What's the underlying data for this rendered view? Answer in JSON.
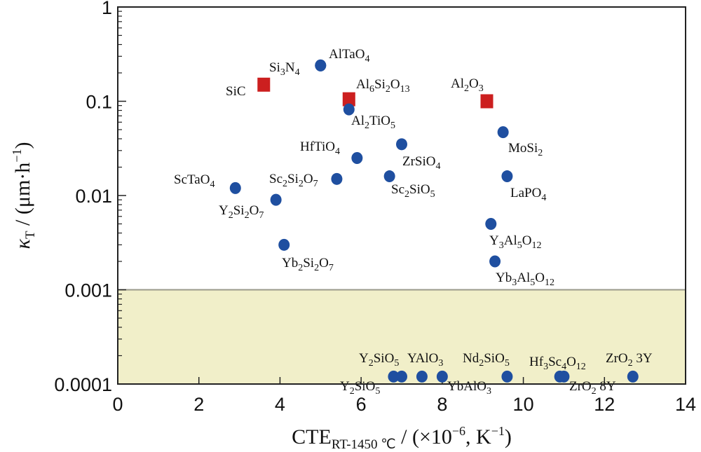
{
  "chart_data": {
    "type": "scatter",
    "xlabel": {
      "main": "CTE",
      "sub": "RT-1450 ℃",
      "rest": " / (×10",
      "exp": "−6",
      "rest2": ", K",
      "exp2": "−1",
      "close": ")"
    },
    "ylabel": {
      "kappa": "κ",
      "sub": "T",
      "rest": " / (μm·h",
      "exp": "−1",
      "close": ")"
    },
    "xlim": [
      0,
      14
    ],
    "ylim": [
      0.0001,
      1
    ],
    "yscale": "log",
    "x_ticks": [
      0,
      2,
      4,
      6,
      8,
      10,
      12,
      14
    ],
    "x_tick_labels": [
      "0",
      "2",
      "4",
      "6",
      "8",
      "10",
      "12",
      "14"
    ],
    "y_ticks": [
      0.0001,
      0.001,
      0.01,
      0.1,
      1
    ],
    "y_tick_labels": [
      "0.0001",
      "0.001",
      "0.01",
      "0.1",
      "1"
    ],
    "shaded_region": {
      "y_from": 0.0001,
      "y_to": 0.001,
      "color": "#f1efc9"
    },
    "colors": {
      "circle": "#1f4fa0",
      "square": "#cc1f1f",
      "frame": "#222222",
      "shade_line": "#9a9a8a"
    },
    "series": [
      {
        "marker": "square",
        "points": [
          {
            "label": "SiC",
            "x": 3.6,
            "y": 0.15
          },
          {
            "label": "Al6Si2O13",
            "x": 5.7,
            "y": 0.105
          },
          {
            "label": "Al2O3",
            "x": 9.1,
            "y": 0.1
          }
        ]
      },
      {
        "marker": "circle",
        "points": [
          {
            "label": "Si3N4",
            "x": 5.0,
            "y": 0.24
          },
          {
            "label": "AlTaO4",
            "x": 5.0,
            "y": 0.24
          },
          {
            "label": "Al2TiO5",
            "x": 5.7,
            "y": 0.082
          },
          {
            "label": "HfTiO4",
            "x": 5.9,
            "y": 0.025
          },
          {
            "label": "ZrSiO4",
            "x": 7.0,
            "y": 0.035
          },
          {
            "label": "Sc2SiO5",
            "x": 6.7,
            "y": 0.016
          },
          {
            "label": "Sc2Si2O7",
            "x": 5.4,
            "y": 0.015
          },
          {
            "label": "ScTaO4",
            "x": 2.9,
            "y": 0.012
          },
          {
            "label": "Y2Si2O7",
            "x": 3.9,
            "y": 0.009
          },
          {
            "label": "Yb2Si2O7",
            "x": 4.1,
            "y": 0.003
          },
          {
            "label": "MoSi2",
            "x": 9.5,
            "y": 0.047
          },
          {
            "label": "LaPO4",
            "x": 9.6,
            "y": 0.016
          },
          {
            "label": "Y3Al5O12",
            "x": 9.2,
            "y": 0.005
          },
          {
            "label": "Yb3Al5O12",
            "x": 9.3,
            "y": 0.002
          },
          {
            "label": "Y2SiO5",
            "x": 6.8,
            "y": 0.00012
          },
          {
            "label": "Y2SiO5",
            "x": 7.0,
            "y": 0.00012
          },
          {
            "label": "YAlO3",
            "x": 7.5,
            "y": 0.00012
          },
          {
            "label": "YbAlO3",
            "x": 8.0,
            "y": 0.00012
          },
          {
            "label": "Nd2SiO5",
            "x": 9.6,
            "y": 0.00012
          },
          {
            "label": "Hf3Sc4O12",
            "x": 10.9,
            "y": 0.00012
          },
          {
            "label": "ZrO2 8Y",
            "x": 11.0,
            "y": 0.00012
          },
          {
            "label": "ZrO2 3Y",
            "x": 12.7,
            "y": 0.00012
          }
        ]
      }
    ],
    "labels": [
      {
        "name": "SiC",
        "parts": [
          [
            "SiC",
            ""
          ]
        ]
      },
      {
        "name": "Si3N4",
        "parts": [
          [
            "Si",
            ""
          ],
          [
            "3",
            "sub"
          ],
          [
            "N",
            ""
          ],
          [
            "4",
            "sub"
          ]
        ]
      },
      {
        "name": "AlTaO4",
        "parts": [
          [
            "AlTaO",
            ""
          ],
          [
            "4",
            "sub"
          ]
        ]
      },
      {
        "name": "Al6Si2O13",
        "parts": [
          [
            "Al",
            ""
          ],
          [
            "6",
            "sub"
          ],
          [
            "Si",
            ""
          ],
          [
            "2",
            "sub"
          ],
          [
            "O",
            ""
          ],
          [
            "13",
            "sub"
          ]
        ]
      },
      {
        "name": "Al2TiO5",
        "parts": [
          [
            "Al",
            ""
          ],
          [
            "2",
            "sub"
          ],
          [
            "TiO",
            ""
          ],
          [
            "5",
            "sub"
          ]
        ]
      },
      {
        "name": "Al2O3",
        "parts": [
          [
            "Al",
            ""
          ],
          [
            "2",
            "sub"
          ],
          [
            "O",
            ""
          ],
          [
            "3",
            "sub"
          ]
        ]
      },
      {
        "name": "HfTiO4",
        "parts": [
          [
            "HfTiO",
            ""
          ],
          [
            "4",
            "sub"
          ]
        ]
      },
      {
        "name": "ZrSiO4",
        "parts": [
          [
            "ZrSiO",
            ""
          ],
          [
            "4",
            "sub"
          ]
        ]
      },
      {
        "name": "Sc2SiO5",
        "parts": [
          [
            "Sc",
            ""
          ],
          [
            "2",
            "sub"
          ],
          [
            "SiO",
            ""
          ],
          [
            "5",
            "sub"
          ]
        ]
      },
      {
        "name": "Sc2Si2O7",
        "parts": [
          [
            "Sc",
            ""
          ],
          [
            "2",
            "sub"
          ],
          [
            "Si",
            ""
          ],
          [
            "2",
            "sub"
          ],
          [
            "O",
            ""
          ],
          [
            "7",
            "sub"
          ]
        ]
      },
      {
        "name": "ScTaO4",
        "parts": [
          [
            "ScTaO",
            ""
          ],
          [
            "4",
            "sub"
          ]
        ]
      },
      {
        "name": "Y2Si2O7",
        "parts": [
          [
            "Y",
            ""
          ],
          [
            "2",
            "sub"
          ],
          [
            "Si",
            ""
          ],
          [
            "2",
            "sub"
          ],
          [
            "O",
            ""
          ],
          [
            "7",
            "sub"
          ]
        ]
      },
      {
        "name": "Yb2Si2O7",
        "parts": [
          [
            "Yb",
            ""
          ],
          [
            "2",
            "sub"
          ],
          [
            "Si",
            ""
          ],
          [
            "2",
            "sub"
          ],
          [
            "O",
            ""
          ],
          [
            "7",
            "sub"
          ]
        ]
      },
      {
        "name": "MoSi2",
        "parts": [
          [
            "MoSi",
            ""
          ],
          [
            "2",
            "sub"
          ]
        ]
      },
      {
        "name": "LaPO4",
        "parts": [
          [
            "LaPO",
            ""
          ],
          [
            "4",
            "sub"
          ]
        ]
      },
      {
        "name": "Y3Al5O12",
        "parts": [
          [
            "Y",
            ""
          ],
          [
            "3",
            "sub"
          ],
          [
            "Al",
            ""
          ],
          [
            "5",
            "sub"
          ],
          [
            "O",
            ""
          ],
          [
            "12",
            "sub"
          ]
        ]
      },
      {
        "name": "Yb3Al5O12",
        "parts": [
          [
            "Yb",
            ""
          ],
          [
            "3",
            "sub"
          ],
          [
            "Al",
            ""
          ],
          [
            "5",
            "sub"
          ],
          [
            "O",
            ""
          ],
          [
            "12",
            "sub"
          ]
        ]
      },
      {
        "name": "Y2SiO5-top",
        "parts": [
          [
            "Y",
            ""
          ],
          [
            "2",
            "sub"
          ],
          [
            "SiO",
            ""
          ],
          [
            "5",
            "sub"
          ]
        ]
      },
      {
        "name": "YAlO3",
        "parts": [
          [
            "YAlO",
            ""
          ],
          [
            "3",
            "sub"
          ]
        ]
      },
      {
        "name": "Nd2SiO5",
        "parts": [
          [
            "Nd",
            ""
          ],
          [
            "2",
            "sub"
          ],
          [
            "SiO",
            ""
          ],
          [
            "5",
            "sub"
          ]
        ]
      },
      {
        "name": "Hf3Sc4O12",
        "parts": [
          [
            "Hf",
            ""
          ],
          [
            "3",
            "sub"
          ],
          [
            "Sc",
            ""
          ],
          [
            "4",
            "sub"
          ],
          [
            "O",
            ""
          ],
          [
            "12",
            "sub"
          ]
        ]
      },
      {
        "name": "ZrO2 3Y",
        "parts": [
          [
            "ZrO",
            ""
          ],
          [
            "2",
            "sub"
          ],
          [
            " 3Y",
            ""
          ]
        ]
      },
      {
        "name": "Y2SiO5-bottom",
        "parts": [
          [
            "Y",
            ""
          ],
          [
            "2",
            "sub"
          ],
          [
            "SiO",
            ""
          ],
          [
            "5",
            "sub"
          ]
        ]
      },
      {
        "name": "YbAlO3",
        "parts": [
          [
            "YbAlO",
            ""
          ],
          [
            "3",
            "sub"
          ]
        ]
      },
      {
        "name": "ZrO2 8Y",
        "parts": [
          [
            "ZrO",
            ""
          ],
          [
            "2",
            "sub"
          ],
          [
            " 8Y",
            ""
          ]
        ]
      }
    ]
  }
}
